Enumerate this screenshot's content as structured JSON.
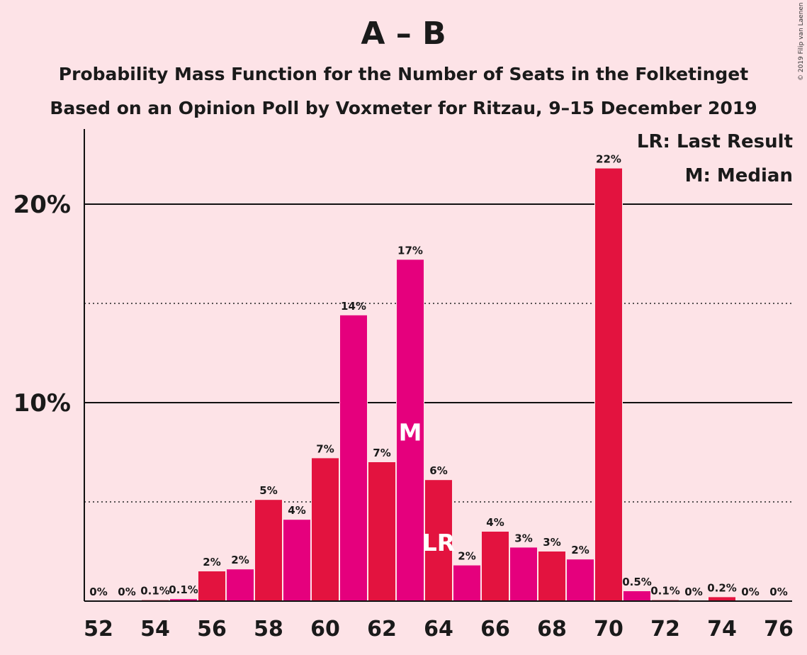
{
  "title": "A – B",
  "subtitle1": "Probability Mass Function for the Number of Seats in the Folketinget",
  "subtitle2": "Based on an Opinion Poll by Voxmeter for Ritzau, 9–15 December 2019",
  "copyright": "© 2019 Filip van Laenen",
  "legend": {
    "lr": "LR: Last Result",
    "m": "M: Median"
  },
  "colors": {
    "background": "#FDE3E7",
    "red": "#E3133F",
    "magenta": "#E5007D",
    "text": "#1a1a1a"
  },
  "chart_data": {
    "type": "bar",
    "xlim": [
      52,
      76
    ],
    "ylim": [
      0,
      23
    ],
    "x_ticks": [
      "52",
      "54",
      "56",
      "58",
      "60",
      "62",
      "64",
      "66",
      "68",
      "70",
      "72",
      "74",
      "76"
    ],
    "y_ticks": [
      {
        "value": 10,
        "label": "10%"
      },
      {
        "value": 20,
        "label": "20%"
      }
    ],
    "dotted_gridlines": [
      5,
      15
    ],
    "solid_gridlines": [
      10,
      20
    ],
    "bars": [
      {
        "seats": 52,
        "value": 0,
        "label": "0%"
      },
      {
        "seats": 53,
        "value": 0,
        "label": "0%"
      },
      {
        "seats": 54,
        "value": 0.05,
        "label": "0.1%"
      },
      {
        "seats": 55,
        "value": 0.1,
        "label": "0.1%"
      },
      {
        "seats": 56,
        "value": 1.5,
        "label": "2%"
      },
      {
        "seats": 57,
        "value": 1.6,
        "label": "2%"
      },
      {
        "seats": 58,
        "value": 5.1,
        "label": "5%"
      },
      {
        "seats": 59,
        "value": 4.1,
        "label": "4%"
      },
      {
        "seats": 60,
        "value": 7.2,
        "label": "7%"
      },
      {
        "seats": 61,
        "value": 14.4,
        "label": "14%"
      },
      {
        "seats": 62,
        "value": 7.0,
        "label": "7%"
      },
      {
        "seats": 63,
        "value": 17.2,
        "label": "17%",
        "marker": "M"
      },
      {
        "seats": 64,
        "value": 6.1,
        "label": "6%",
        "marker": "LR"
      },
      {
        "seats": 65,
        "value": 1.8,
        "label": "2%"
      },
      {
        "seats": 66,
        "value": 3.5,
        "label": "4%"
      },
      {
        "seats": 67,
        "value": 2.7,
        "label": "3%"
      },
      {
        "seats": 68,
        "value": 2.5,
        "label": "3%"
      },
      {
        "seats": 69,
        "value": 2.1,
        "label": "2%"
      },
      {
        "seats": 70,
        "value": 21.8,
        "label": "22%"
      },
      {
        "seats": 71,
        "value": 0.5,
        "label": "0.5%"
      },
      {
        "seats": 72,
        "value": 0.05,
        "label": "0.1%"
      },
      {
        "seats": 73,
        "value": 0,
        "label": "0%"
      },
      {
        "seats": 74,
        "value": 0.2,
        "label": "0.2%"
      },
      {
        "seats": 75,
        "value": 0,
        "label": "0%"
      },
      {
        "seats": 76,
        "value": 0,
        "label": "0%"
      }
    ]
  }
}
